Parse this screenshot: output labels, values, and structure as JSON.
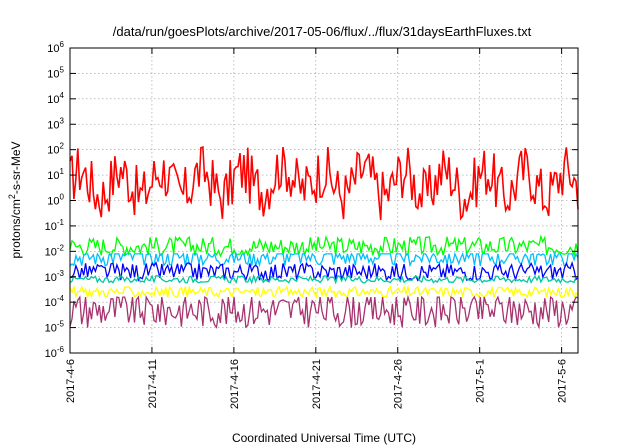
{
  "chart_data": {
    "type": "line",
    "title": "/data/run/goesPlots/archive/2017-05-06/flux/../flux/31daysEarthFluxes.txt",
    "xlabel": "Coordinated Universal Time (UTC)",
    "ylabel": {
      "pre": "protons/cm",
      "sup": "2",
      "post": "-s-sr-MeV"
    },
    "yscale": "log",
    "ylim_exp": [
      -6,
      6
    ],
    "xlim": [
      "2017-04-06",
      "2017-05-07"
    ],
    "x_ticks": [
      "2017-4-6",
      "2017-4-11",
      "2017-4-16",
      "2017-4-21",
      "2017-4-26",
      "2017-5-1",
      "2017-5-6"
    ],
    "y_ticks": [
      -6,
      -5,
      -4,
      -3,
      -2,
      -1,
      0,
      1,
      2,
      3,
      4,
      5,
      6
    ],
    "grid": true,
    "series": [
      {
        "color": "#ff0000",
        "approx_log10_level": 0.7,
        "approx_log10_range": [
          -1.0,
          2.1
        ]
      },
      {
        "color": "#00ff00",
        "approx_log10_level": -1.8,
        "approx_log10_range": [
          -2.4,
          -1.3
        ]
      },
      {
        "color": "#00bfff",
        "approx_log10_level": -2.2,
        "approx_log10_range": [
          -3.2,
          -2.1
        ]
      },
      {
        "color": "#0000ff",
        "approx_log10_level": -2.8,
        "approx_log10_range": [
          -3.2,
          -2.2
        ]
      },
      {
        "color": "#00c8a0",
        "approx_log10_level": -3.1,
        "approx_log10_range": [
          -3.3,
          -2.9
        ]
      },
      {
        "color": "#ffff00",
        "approx_log10_level": -3.6,
        "approx_log10_range": [
          -3.9,
          -3.3
        ]
      },
      {
        "color": "#a83270",
        "approx_log10_level": -4.3,
        "approx_log10_range": [
          -5.8,
          -3.8
        ]
      }
    ]
  }
}
